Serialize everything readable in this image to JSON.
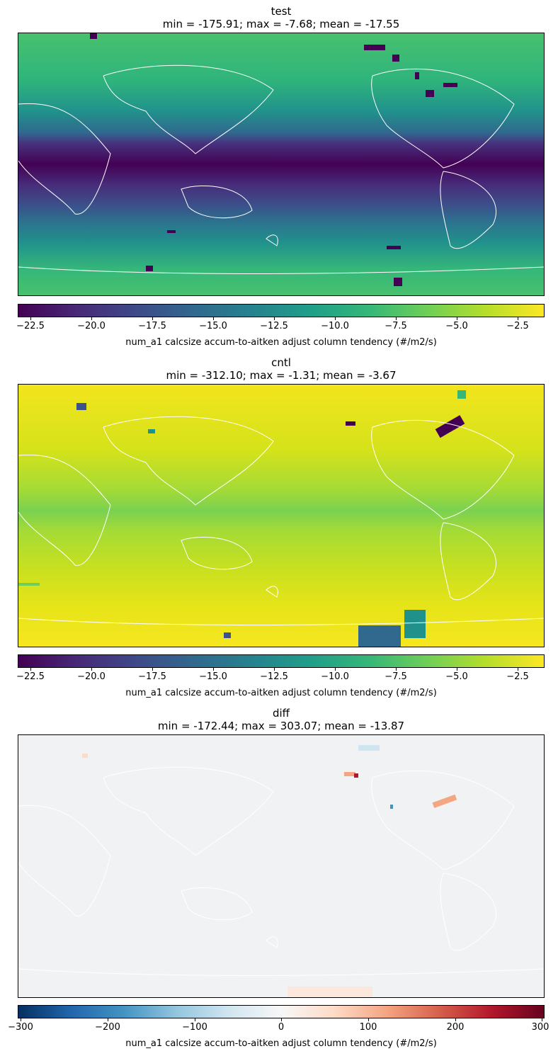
{
  "chart_data": [
    {
      "type": "heatmap",
      "title": "test",
      "subtitle": "min = -175.91; max = -7.68; mean = -17.55",
      "colormap": "viridis",
      "colorbar": {
        "range": [
          -23.2,
          -1.6
        ],
        "ticks": [
          -22.5,
          -20.0,
          -17.5,
          -15.0,
          -12.5,
          -10.0,
          -7.5,
          -5.0,
          -2.5
        ],
        "tick_labels": [
          "−22.5",
          "−20.0",
          "−17.5",
          "−15.0",
          "−12.5",
          "−10.0",
          "−7.5",
          "−5.0",
          "−2.5"
        ],
        "label": "num_a1 calcsize accum-to-aitken adjust column tendency (#/m2/s)"
      },
      "stats": {
        "min": -175.91,
        "max": -7.68,
        "mean": -17.55
      },
      "projection": "global map, Pacific-centered, coastlines in white"
    },
    {
      "type": "heatmap",
      "title": "cntl",
      "subtitle": "min = -312.10; max = -1.31; mean = -3.67",
      "colormap": "viridis",
      "colorbar": {
        "range": [
          -23.2,
          -1.6
        ],
        "ticks": [
          -22.5,
          -20.0,
          -17.5,
          -15.0,
          -12.5,
          -10.0,
          -7.5,
          -5.0,
          -2.5
        ],
        "tick_labels": [
          "−22.5",
          "−20.0",
          "−17.5",
          "−15.0",
          "−12.5",
          "−10.0",
          "−7.5",
          "−5.0",
          "−2.5"
        ],
        "label": "num_a1 calcsize accum-to-aitken adjust column tendency (#/m2/s)"
      },
      "stats": {
        "min": -312.1,
        "max": -1.31,
        "mean": -3.67
      },
      "projection": "global map, Pacific-centered, coastlines in white"
    },
    {
      "type": "heatmap",
      "title": "diff",
      "subtitle": "min = -172.44; max = 303.07; mean = -13.87",
      "colormap": "RdBu_r",
      "colorbar": {
        "range": [
          -303.07,
          303.07
        ],
        "ticks": [
          -300,
          -200,
          -100,
          0,
          100,
          200,
          300
        ],
        "tick_labels": [
          "−300",
          "−200",
          "−100",
          "0",
          "100",
          "200",
          "300"
        ],
        "label": "num_a1 calcsize accum-to-aitken adjust column tendency (#/m2/s)"
      },
      "stats": {
        "min": -172.44,
        "max": 303.07,
        "mean": -13.87
      },
      "projection": "global map, Pacific-centered, coastlines in white"
    }
  ]
}
